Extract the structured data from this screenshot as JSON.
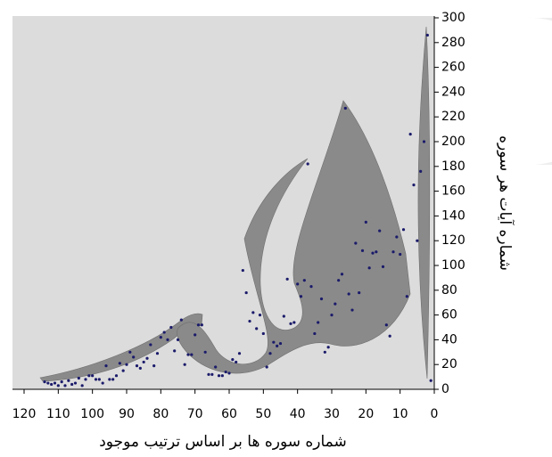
{
  "chart_data": {
    "type": "scatter",
    "x_label": "شماره سوره ها بر اساس ترتیب موجود",
    "y_label": "شماره آیات هر سوره",
    "series": [
      {
        "color": "#1b1b6b",
        "x": [
          1,
          2,
          3,
          4,
          5,
          6,
          7,
          8,
          9,
          10,
          11,
          12,
          13,
          14,
          15,
          16,
          17,
          18,
          19,
          20,
          21,
          22,
          23,
          24,
          25,
          26,
          27,
          28,
          29,
          30,
          31,
          32,
          33,
          34,
          35,
          36,
          37,
          38,
          39,
          40,
          41,
          42,
          43,
          44,
          45,
          46,
          47,
          48,
          49,
          50,
          51,
          52,
          53,
          54,
          55,
          56,
          57,
          58,
          59,
          60,
          61,
          62,
          63,
          64,
          65,
          66,
          67,
          68,
          69,
          70,
          71,
          72,
          73,
          74,
          75,
          76,
          77,
          78,
          79,
          80,
          81,
          82,
          83,
          84,
          85,
          86,
          87,
          88,
          89,
          90,
          91,
          92,
          93,
          94,
          95,
          96,
          97,
          98,
          99,
          100,
          101,
          102,
          103,
          104,
          105,
          106,
          107,
          108,
          109,
          110,
          111,
          112,
          113,
          114
        ],
        "values": [
          7,
          286,
          200,
          176,
          120,
          165,
          206,
          75,
          129,
          109,
          123,
          111,
          43,
          52,
          99,
          128,
          111,
          110,
          98,
          135,
          112,
          78,
          118,
          64,
          77,
          227,
          93,
          88,
          69,
          60,
          34,
          30,
          73,
          54,
          45,
          83,
          182,
          88,
          75,
          85,
          54,
          53,
          89,
          59,
          37,
          35,
          38,
          29,
          18,
          45,
          60,
          49,
          62,
          55,
          78,
          96,
          29,
          22,
          24,
          13,
          14,
          11,
          11,
          18,
          12,
          12,
          30,
          52,
          52,
          44,
          28,
          28,
          20,
          56,
          40,
          31,
          50,
          40,
          46,
          42,
          29,
          19,
          36,
          25,
          22,
          17,
          19,
          26,
          30,
          20,
          15,
          21,
          11,
          8,
          8,
          19,
          5,
          8,
          8,
          11,
          11,
          8,
          3,
          9,
          5,
          4,
          7,
          3,
          6,
          3,
          5,
          4,
          5,
          6
        ]
      }
    ],
    "xlim": [
      0,
      120
    ],
    "xticks": [
      0,
      10,
      20,
      30,
      40,
      50,
      60,
      70,
      80,
      90,
      100,
      110,
      120
    ],
    "x_reversed": true,
    "ylim": [
      0,
      300
    ],
    "yticks": [
      0,
      20,
      40,
      60,
      80,
      100,
      120,
      140,
      160,
      180,
      200,
      220,
      240,
      260,
      280,
      300
    ],
    "grid": false
  }
}
